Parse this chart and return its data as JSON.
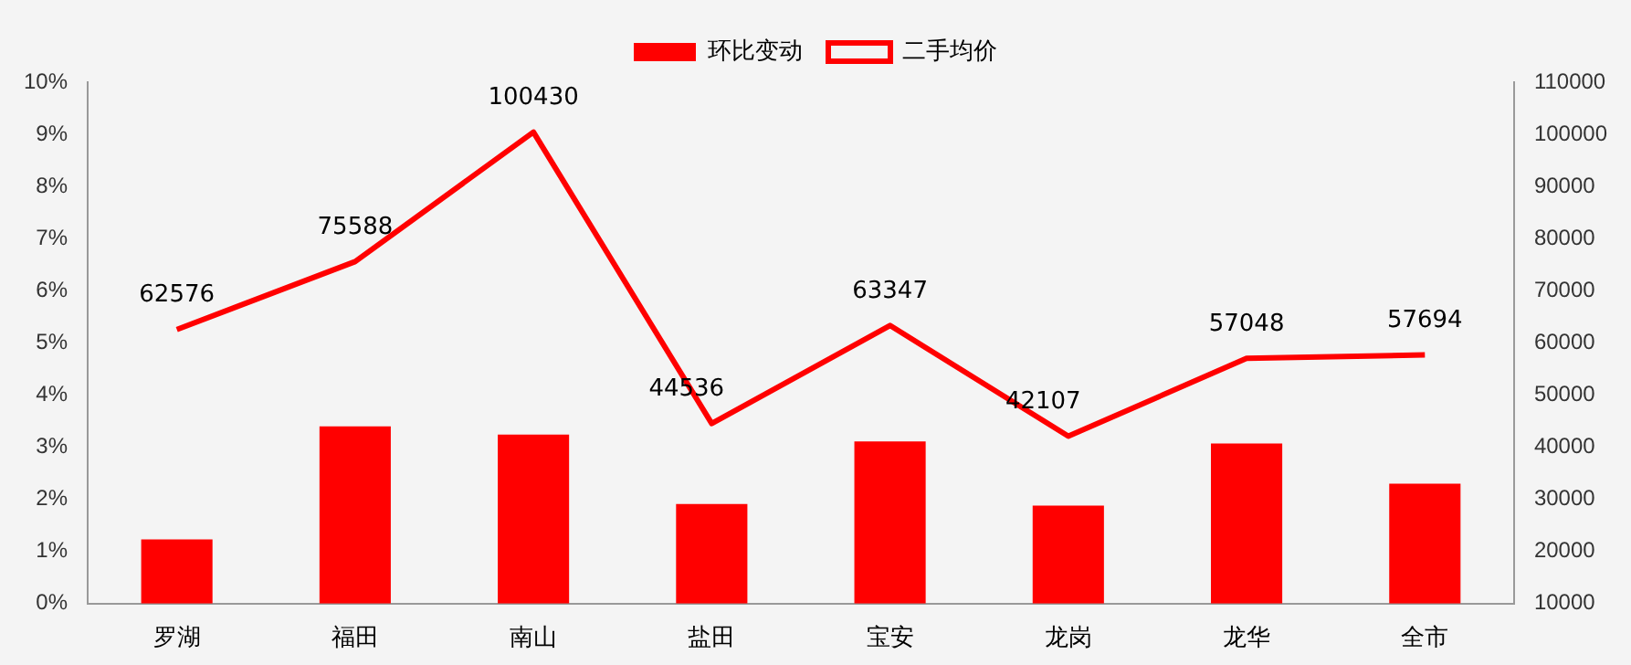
{
  "chart_data": {
    "type": "bar",
    "categories": [
      "罗湖",
      "福田",
      "南山",
      "盐田",
      "宝安",
      "龙岗",
      "龙华",
      "全市"
    ],
    "series": [
      {
        "name": "环比变动",
        "color": "#ff0000",
        "values": [
          1.23,
          3.4,
          3.24,
          1.91,
          3.11,
          1.88,
          3.07,
          2.3
        ]
      },
      {
        "name": "二手均价",
        "type": "line",
        "axis": "y2",
        "color": "#ff0000",
        "values": [
          62576,
          75588,
          100430,
          44536,
          63347,
          42107,
          57048,
          57694
        ],
        "value_labels": [
          "62576",
          "75588",
          "100430",
          "44536",
          "63347",
          "42107",
          "57048",
          "57694"
        ]
      }
    ],
    "ylim": [
      0,
      10
    ],
    "yticks": [
      {
        "value": 0,
        "label": "0%"
      },
      {
        "value": 1,
        "label": "1%"
      },
      {
        "value": 2,
        "label": "2%"
      },
      {
        "value": 3,
        "label": "3%"
      },
      {
        "value": 4,
        "label": "4%"
      },
      {
        "value": 5,
        "label": "5%"
      },
      {
        "value": 6,
        "label": "6%"
      },
      {
        "value": 7,
        "label": "7%"
      },
      {
        "value": 8,
        "label": "8%"
      },
      {
        "value": 9,
        "label": "9%"
      },
      {
        "value": 10,
        "label": "10%"
      }
    ],
    "y2lim": [
      10000,
      110000
    ],
    "y2ticks": [
      10000,
      20000,
      30000,
      40000,
      50000,
      60000,
      70000,
      80000,
      90000,
      100000,
      110000
    ],
    "legend": "top",
    "grid": false,
    "marker": "none"
  }
}
